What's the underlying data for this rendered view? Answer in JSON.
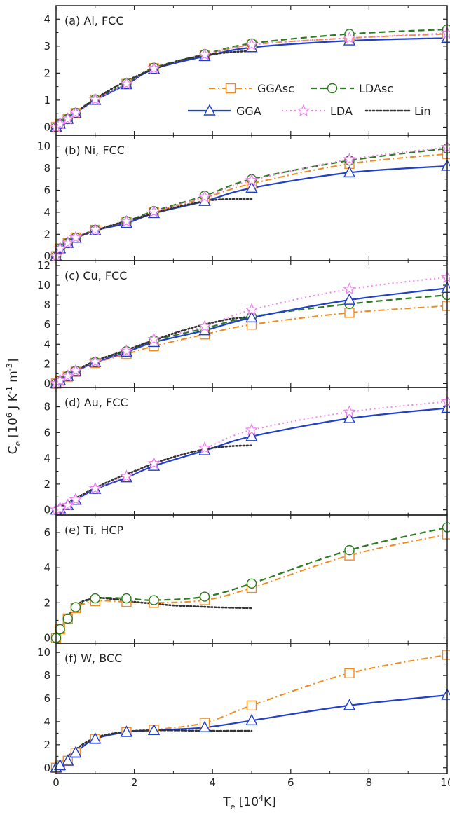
{
  "figure": {
    "ylabel": {
      "main": "C",
      "sub": "e",
      "units": "[10",
      "sup1": "6",
      "units2": "J K",
      "sup2": "-1",
      "units3": " m",
      "sup3": "-3",
      "units4": "]"
    },
    "xlabel": {
      "main": "T",
      "sub": "e",
      "units": "[10",
      "sup1": "4",
      "units2": "K]"
    }
  },
  "legend": [
    {
      "name": "GGAsc",
      "color": "#f28a1e",
      "dash": "dashdot",
      "marker": "square"
    },
    {
      "name": "LDAsc",
      "color": "#2a7d1e",
      "dash": "dash",
      "marker": "circle"
    },
    {
      "name": "GGA",
      "color": "#1f3fcc",
      "dash": "solid",
      "marker": "triangle"
    },
    {
      "name": "LDA",
      "color": "#ee82ee",
      "dash": "dot",
      "marker": "star"
    },
    {
      "name": "Lin",
      "color": "#333333",
      "dash": "dotdense",
      "marker": "none"
    }
  ],
  "chart_data": [
    {
      "type": "line",
      "title": "(a) Al, FCC",
      "xlim": [
        0,
        10
      ],
      "ylim": [
        -0.3,
        4.5
      ],
      "yticks": [
        0,
        1,
        2,
        3,
        4
      ],
      "xticks": [
        0,
        2,
        4,
        6,
        8,
        10
      ],
      "series": [
        {
          "name": "GGAsc",
          "x": [
            0,
            0.1,
            0.3,
            0.5,
            1,
            1.8,
            2.5,
            3.8,
            5,
            7.5,
            10
          ],
          "y": [
            0,
            0.12,
            0.3,
            0.52,
            1.02,
            1.6,
            2.18,
            2.65,
            3.05,
            3.3,
            3.45
          ]
        },
        {
          "name": "LDAsc",
          "x": [
            0,
            0.1,
            0.3,
            0.5,
            1,
            1.8,
            2.5,
            3.8,
            5,
            7.5,
            10
          ],
          "y": [
            0,
            0.12,
            0.3,
            0.53,
            1.03,
            1.62,
            2.2,
            2.7,
            3.1,
            3.45,
            3.62
          ]
        },
        {
          "name": "GGA",
          "x": [
            0,
            0.1,
            0.3,
            0.5,
            1,
            1.8,
            2.5,
            3.8,
            5,
            7.5,
            10
          ],
          "y": [
            0,
            0.12,
            0.3,
            0.52,
            1.0,
            1.58,
            2.15,
            2.62,
            2.95,
            3.2,
            3.3
          ]
        },
        {
          "name": "LDA",
          "x": [
            0,
            0.1,
            0.3,
            0.5,
            1,
            1.8,
            2.5,
            3.8,
            5,
            7.5,
            10
          ],
          "y": [
            0,
            0.12,
            0.3,
            0.53,
            1.02,
            1.6,
            2.18,
            2.68,
            3.05,
            3.3,
            3.48
          ]
        },
        {
          "name": "Lin",
          "x": [
            0,
            0.5,
            1,
            1.5,
            2,
            2.5,
            3,
            3.5,
            4,
            4.5,
            5
          ],
          "y": [
            0,
            0.55,
            1.05,
            1.48,
            1.85,
            2.15,
            2.4,
            2.58,
            2.7,
            2.78,
            2.82
          ]
        }
      ]
    },
    {
      "type": "line",
      "title": "(b) Ni, FCC",
      "xlim": [
        0,
        10
      ],
      "ylim": [
        -0.4,
        11.0
      ],
      "yticks": [
        0,
        2,
        4,
        6,
        8,
        10
      ],
      "xticks": [
        0,
        2,
        4,
        6,
        8,
        10
      ],
      "series": [
        {
          "name": "GGAsc",
          "x": [
            0,
            0.1,
            0.3,
            0.5,
            1,
            1.8,
            2.5,
            3.8,
            5,
            7.5,
            10
          ],
          "y": [
            0,
            0.7,
            1.2,
            1.7,
            2.4,
            3.1,
            4.0,
            5.3,
            6.6,
            8.4,
            9.3
          ]
        },
        {
          "name": "LDAsc",
          "x": [
            0,
            0.1,
            0.3,
            0.5,
            1,
            1.8,
            2.5,
            3.8,
            5,
            7.5,
            10
          ],
          "y": [
            0,
            0.7,
            1.2,
            1.7,
            2.4,
            3.2,
            4.1,
            5.5,
            7.0,
            8.7,
            9.8
          ]
        },
        {
          "name": "GGA",
          "x": [
            0,
            0.1,
            0.3,
            0.5,
            1,
            1.8,
            2.5,
            3.8,
            5,
            7.5,
            10
          ],
          "y": [
            0,
            0.7,
            1.2,
            1.65,
            2.35,
            3.0,
            3.9,
            5.0,
            6.2,
            7.6,
            8.2
          ]
        },
        {
          "name": "LDA",
          "x": [
            0,
            0.1,
            0.3,
            0.5,
            1,
            1.8,
            2.5,
            3.8,
            5,
            7.5,
            10
          ],
          "y": [
            0,
            0.7,
            1.2,
            1.7,
            2.4,
            3.15,
            4.05,
            5.4,
            6.9,
            8.8,
            9.9
          ]
        },
        {
          "name": "Lin",
          "x": [
            0,
            0.5,
            1,
            1.5,
            2,
            2.5,
            3,
            3.5,
            4,
            4.5,
            5
          ],
          "y": [
            0,
            1.6,
            2.3,
            2.9,
            3.4,
            3.9,
            4.4,
            4.8,
            5.1,
            5.2,
            5.2
          ]
        }
      ]
    },
    {
      "type": "line",
      "title": "(c) Cu, FCC",
      "xlim": [
        0,
        10
      ],
      "ylim": [
        -0.4,
        12.5
      ],
      "yticks": [
        0,
        2,
        4,
        6,
        8,
        10,
        12
      ],
      "xticks": [
        0,
        2,
        4,
        6,
        8,
        10
      ],
      "series": [
        {
          "name": "GGAsc",
          "x": [
            0,
            0.1,
            0.3,
            0.5,
            1,
            1.8,
            2.5,
            3.8,
            5,
            7.5,
            10
          ],
          "y": [
            0,
            0.3,
            0.7,
            1.2,
            2.1,
            3.0,
            3.8,
            5.0,
            6.0,
            7.2,
            7.9
          ]
        },
        {
          "name": "LDAsc",
          "x": [
            0,
            0.1,
            0.3,
            0.5,
            1,
            1.8,
            2.5,
            3.8,
            5,
            7.5,
            10
          ],
          "y": [
            0,
            0.3,
            0.75,
            1.3,
            2.2,
            3.3,
            4.4,
            5.6,
            6.8,
            8.1,
            9.0
          ]
        },
        {
          "name": "GGA",
          "x": [
            0,
            0.1,
            0.3,
            0.5,
            1,
            1.8,
            2.5,
            3.8,
            5,
            7.5,
            10
          ],
          "y": [
            0,
            0.3,
            0.75,
            1.25,
            2.15,
            3.2,
            4.2,
            5.4,
            6.7,
            8.5,
            9.7
          ]
        },
        {
          "name": "LDA",
          "x": [
            0,
            0.1,
            0.3,
            0.5,
            1,
            1.8,
            2.5,
            3.8,
            5,
            7.5,
            10
          ],
          "y": [
            0,
            0.3,
            0.75,
            1.3,
            2.2,
            3.3,
            4.5,
            5.8,
            7.5,
            9.6,
            10.8
          ]
        },
        {
          "name": "Lin",
          "x": [
            0,
            0.5,
            1,
            1.5,
            2,
            2.5,
            3,
            3.5,
            4,
            4.5,
            5
          ],
          "y": [
            0,
            1.3,
            2.3,
            3.0,
            3.7,
            4.4,
            5.1,
            5.7,
            6.2,
            6.6,
            6.8
          ]
        }
      ]
    },
    {
      "type": "line",
      "title": "(d) Au, FCC",
      "xlim": [
        0,
        10
      ],
      "ylim": [
        -0.4,
        9.5
      ],
      "yticks": [
        0,
        2,
        4,
        6,
        8
      ],
      "xticks": [
        0,
        2,
        4,
        6,
        8,
        10
      ],
      "series": [
        {
          "name": "GGA",
          "x": [
            0,
            0.1,
            0.3,
            0.5,
            1,
            1.8,
            2.5,
            3.8,
            5,
            7.5,
            10
          ],
          "y": [
            0,
            0.1,
            0.35,
            0.75,
            1.6,
            2.5,
            3.4,
            4.6,
            5.7,
            7.1,
            7.9
          ]
        },
        {
          "name": "LDA",
          "x": [
            0,
            0.1,
            0.3,
            0.5,
            1,
            1.8,
            2.5,
            3.8,
            5,
            7.5,
            10
          ],
          "y": [
            0,
            0.1,
            0.35,
            0.8,
            1.65,
            2.6,
            3.6,
            4.8,
            6.2,
            7.6,
            8.4
          ]
        },
        {
          "name": "Lin",
          "x": [
            0,
            0.5,
            1,
            1.5,
            2,
            2.5,
            3,
            3.5,
            4,
            4.5,
            5
          ],
          "y": [
            0,
            0.9,
            1.7,
            2.4,
            3.0,
            3.6,
            4.1,
            4.5,
            4.8,
            4.95,
            5.0
          ]
        }
      ]
    },
    {
      "type": "line",
      "title": "(e) Ti, HCP",
      "xlim": [
        0,
        10
      ],
      "ylim": [
        -0.3,
        7.0
      ],
      "yticks": [
        0,
        2,
        4,
        6
      ],
      "xticks": [
        0,
        2,
        4,
        6,
        8,
        10
      ],
      "series": [
        {
          "name": "GGAsc",
          "x": [
            0,
            0.1,
            0.3,
            0.5,
            1,
            1.8,
            2.5,
            3.8,
            5,
            7.5,
            10
          ],
          "y": [
            0,
            0.5,
            1.1,
            1.7,
            2.1,
            2.05,
            2.0,
            2.15,
            2.85,
            4.7,
            5.9
          ]
        },
        {
          "name": "LDAsc",
          "x": [
            0,
            0.1,
            0.3,
            0.5,
            1,
            1.8,
            2.5,
            3.8,
            5,
            7.5,
            10
          ],
          "y": [
            0,
            0.5,
            1.1,
            1.75,
            2.25,
            2.25,
            2.15,
            2.35,
            3.1,
            5.0,
            6.3
          ]
        },
        {
          "name": "Lin",
          "x": [
            0,
            0.5,
            1,
            1.5,
            2,
            2.5,
            3,
            3.5,
            4,
            4.5,
            5
          ],
          "y": [
            0,
            1.8,
            2.25,
            2.2,
            2.05,
            1.95,
            1.85,
            1.8,
            1.75,
            1.72,
            1.7
          ]
        }
      ]
    },
    {
      "type": "line",
      "title": "(f) W, BCC",
      "xlim": [
        0,
        10
      ],
      "ylim": [
        -0.5,
        10.8
      ],
      "yticks": [
        0,
        2,
        4,
        6,
        8,
        10
      ],
      "xticks": [
        0,
        2,
        4,
        6,
        8,
        10
      ],
      "series": [
        {
          "name": "GGAsc",
          "x": [
            0,
            0.1,
            0.3,
            0.5,
            1,
            1.8,
            2.5,
            3.8,
            5,
            7.5,
            10
          ],
          "y": [
            0,
            0.2,
            0.6,
            1.3,
            2.5,
            3.1,
            3.3,
            3.9,
            5.4,
            8.2,
            9.8
          ]
        },
        {
          "name": "GGA",
          "x": [
            0,
            0.1,
            0.3,
            0.5,
            1,
            1.8,
            2.5,
            3.8,
            5,
            7.5,
            10
          ],
          "y": [
            0,
            0.2,
            0.6,
            1.3,
            2.5,
            3.1,
            3.25,
            3.5,
            4.1,
            5.4,
            6.3
          ]
        },
        {
          "name": "Lin",
          "x": [
            0,
            0.5,
            1,
            1.5,
            2,
            2.5,
            3,
            3.5,
            4,
            4.5,
            5
          ],
          "y": [
            0,
            1.6,
            2.6,
            3.0,
            3.2,
            3.25,
            3.25,
            3.22,
            3.2,
            3.2,
            3.2
          ]
        }
      ]
    }
  ]
}
